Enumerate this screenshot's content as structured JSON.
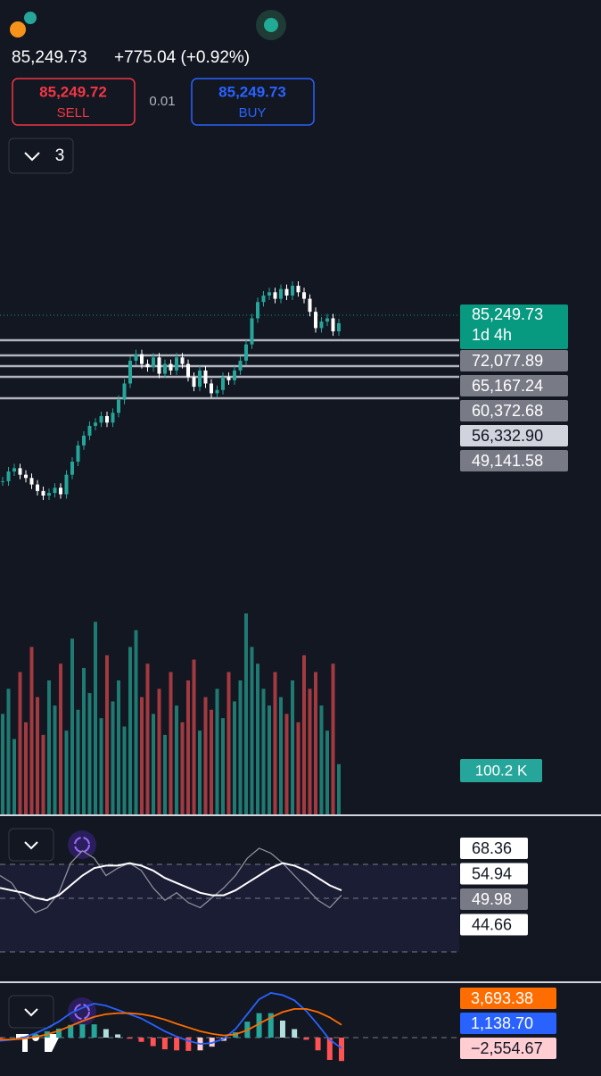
{
  "header": {
    "price": "85,249.73",
    "change": "+775.04 (+0.92%)",
    "sell_price": "85,249.72",
    "sell_label": "SELL",
    "spread": "0.01",
    "buy_price": "85,249.73",
    "buy_label": "BUY",
    "indicator_count": "3"
  },
  "price_chart": {
    "current_price": "85,249.73",
    "countdown": "1d 4h",
    "levels": [
      "72,077.89",
      "65,167.24",
      "60,372.68",
      "56,332.90",
      "49,141.58"
    ],
    "volume_label": "100.2 K",
    "closes": [
      61000,
      62500,
      63000,
      62000,
      61500,
      60500,
      59500,
      58800,
      59200,
      60000,
      59000,
      62000,
      64000,
      66500,
      68000,
      69500,
      70000,
      71000,
      70000,
      71500,
      73500,
      76000,
      79500,
      80500,
      79000,
      78500,
      80000,
      77500,
      79000,
      78000,
      80000,
      79000,
      77000,
      75500,
      78000,
      76000,
      74500,
      75000,
      77000,
      76500,
      78000,
      79500,
      82000,
      86000,
      88500,
      89500,
      90000,
      89000,
      90500,
      89500,
      91000,
      90000,
      89000,
      87000,
      84500,
      85500,
      86000,
      84000,
      85250
    ],
    "volumes": [
      120,
      150,
      90,
      170,
      110,
      200,
      140,
      95,
      160,
      130,
      180,
      100,
      210,
      125,
      175,
      145,
      230,
      115,
      190,
      135,
      160,
      105,
      200,
      220,
      140,
      180,
      120,
      150,
      95,
      170,
      130,
      110,
      160,
      185,
      100,
      140,
      125,
      150,
      115,
      170,
      135,
      160,
      240,
      200,
      180,
      150,
      130,
      170,
      140,
      120,
      160,
      110,
      190,
      150,
      170,
      130,
      100,
      180,
      60
    ]
  },
  "rsi": {
    "labels": [
      "68.36",
      "54.94",
      "49.98",
      "44.66"
    ],
    "values": [
      55,
      52,
      45,
      40,
      42,
      48,
      60,
      65,
      62,
      55,
      58,
      60,
      57,
      50,
      45,
      48,
      44,
      42,
      46,
      50,
      55,
      62,
      66,
      64,
      60,
      55,
      50,
      45,
      42,
      47
    ],
    "ma": [
      50,
      49,
      48,
      46,
      45,
      47,
      51,
      55,
      58,
      59,
      59,
      60,
      59,
      57,
      54,
      52,
      50,
      48,
      47,
      47,
      49,
      52,
      55,
      58,
      60,
      59,
      57,
      54,
      51,
      49
    ]
  },
  "macd": {
    "labels": [
      "3,693.38",
      "1,138.70",
      "−2,554.67"
    ],
    "macd": [
      -300,
      -200,
      0,
      400,
      900,
      1500,
      2300,
      2800,
      3200,
      3000,
      2600,
      2200,
      1800,
      1200,
      600,
      100,
      -300,
      -600,
      -500,
      -100,
      800,
      2200,
      3600,
      4200,
      4000,
      3500,
      2500,
      1200,
      -200,
      -1000
    ],
    "signal": [
      -200,
      -180,
      -100,
      50,
      300,
      650,
      1100,
      1550,
      1950,
      2200,
      2300,
      2300,
      2200,
      2000,
      1700,
      1300,
      950,
      600,
      350,
      200,
      300,
      700,
      1300,
      1900,
      2400,
      2700,
      2700,
      2400,
      1900,
      1200
    ],
    "histogram": [
      -100,
      -20,
      100,
      350,
      600,
      850,
      1200,
      1250,
      1250,
      800,
      300,
      -100,
      -400,
      -800,
      -1100,
      -1200,
      -1250,
      -1200,
      -850,
      -300,
      500,
      1500,
      2300,
      2300,
      1600,
      800,
      -200,
      -1200,
      -2100,
      -2200
    ]
  }
}
